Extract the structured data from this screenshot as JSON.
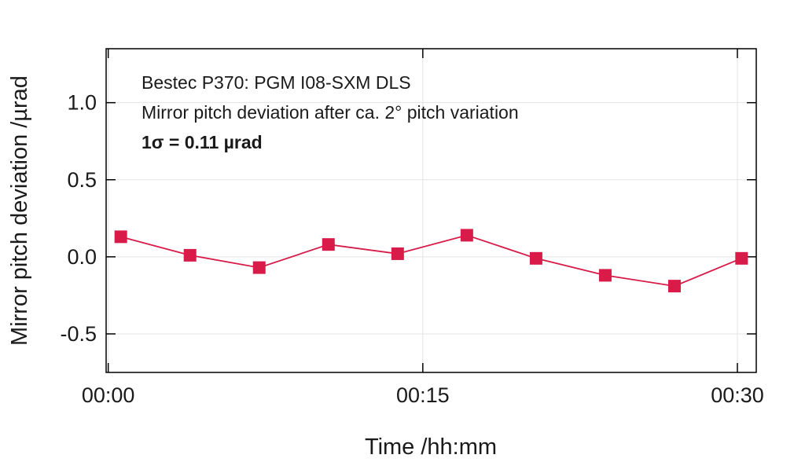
{
  "chart_data": {
    "type": "line",
    "annotation": {
      "line1": "Bestec P370: PGM I08-SXM DLS",
      "line2": "Mirror pitch deviation after ca. 2° pitch variation",
      "line3": "1σ = 0.11 µrad"
    },
    "xlabel": "Time /hh:mm",
    "ylabel": "Mirror pitch deviation /µrad",
    "x_tick_labels": [
      "00:00",
      "00:15",
      "00:30"
    ],
    "x_ticks_min": [
      0,
      15,
      30
    ],
    "y_ticks": [
      -0.5,
      0.0,
      0.5,
      1.0
    ],
    "y_tick_labels": [
      "-0.5",
      "0.0",
      "0.5",
      "1.0"
    ],
    "xlim_min": [
      -0.1,
      30.9
    ],
    "ylim": [
      -0.75,
      1.35
    ],
    "grid": true,
    "series": [
      {
        "x_min": [
          0.6,
          3.9,
          7.2,
          10.5,
          13.8,
          17.1,
          20.4,
          23.7,
          27.0,
          30.2
        ],
        "values": [
          0.13,
          0.01,
          -0.07,
          0.08,
          0.02,
          0.14,
          -0.01,
          -0.12,
          -0.19,
          -0.01
        ],
        "color": "#d81b48"
      }
    ]
  }
}
